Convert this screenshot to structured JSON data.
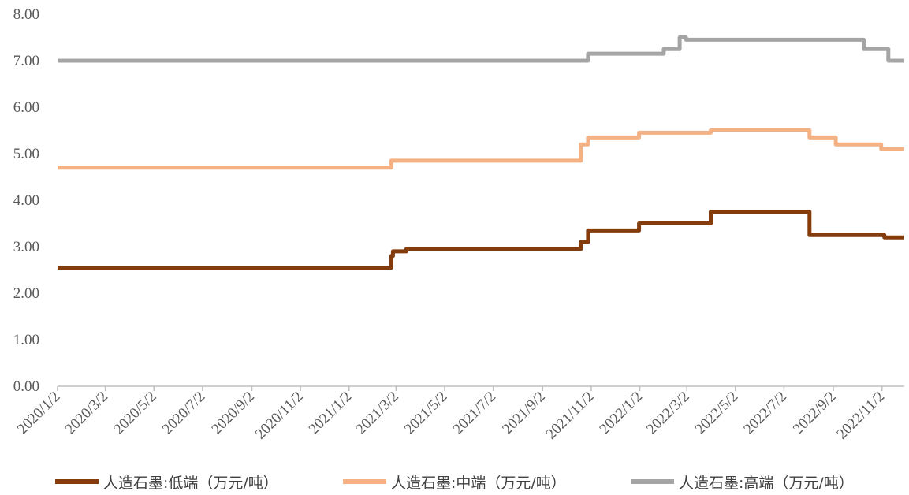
{
  "chart_data": {
    "type": "line",
    "title": "",
    "xlabel": "",
    "ylabel": "",
    "ylim": [
      0,
      8
    ],
    "yticks": [
      "0.00",
      "1.00",
      "2.00",
      "3.00",
      "4.00",
      "5.00",
      "6.00",
      "7.00",
      "8.00"
    ],
    "xticks": [
      "2020/1/2",
      "2020/3/2",
      "2020/5/2",
      "2020/7/2",
      "2020/9/2",
      "2020/11/2",
      "2021/1/2",
      "2021/3/2",
      "2021/5/2",
      "2021/7/2",
      "2021/9/2",
      "2021/11/2",
      "2022/1/2",
      "2022/3/2",
      "2022/5/2",
      "2022/7/2",
      "2022/9/2",
      "2022/11/2"
    ],
    "xlim": [
      "2020-01-02",
      "2022-11-30"
    ],
    "grid": false,
    "legend_position": "bottom",
    "step": true,
    "series": [
      {
        "name": "人造石墨:低端（万元/吨）",
        "color": "#843c0c",
        "points": [
          [
            "2020-01-02",
            2.55
          ],
          [
            "2021-02-24",
            2.8
          ],
          [
            "2021-02-26",
            2.9
          ],
          [
            "2021-03-15",
            2.95
          ],
          [
            "2021-10-20",
            3.1
          ],
          [
            "2021-10-29",
            3.35
          ],
          [
            "2022-01-01",
            3.5
          ],
          [
            "2022-04-01",
            3.75
          ],
          [
            "2022-08-03",
            3.25
          ],
          [
            "2022-11-05",
            3.2
          ],
          [
            "2022-11-30",
            3.2
          ]
        ]
      },
      {
        "name": "人造石墨:中端（万元/吨）",
        "color": "#f4b183",
        "points": [
          [
            "2020-01-02",
            4.7
          ],
          [
            "2021-02-24",
            4.85
          ],
          [
            "2021-10-20",
            5.2
          ],
          [
            "2021-10-29",
            5.35
          ],
          [
            "2022-01-01",
            5.45
          ],
          [
            "2022-04-01",
            5.5
          ],
          [
            "2022-08-03",
            5.35
          ],
          [
            "2022-09-05",
            5.2
          ],
          [
            "2022-11-01",
            5.1
          ],
          [
            "2022-11-30",
            5.1
          ]
        ]
      },
      {
        "name": "人造石墨:高端（万元/吨）",
        "color": "#a5a5a5",
        "points": [
          [
            "2020-01-02",
            7.0
          ],
          [
            "2021-10-29",
            7.15
          ],
          [
            "2022-02-01",
            7.25
          ],
          [
            "2022-02-21",
            7.5
          ],
          [
            "2022-03-01",
            7.45
          ],
          [
            "2022-10-10",
            7.25
          ],
          [
            "2022-11-10",
            7.0
          ],
          [
            "2022-11-30",
            7.0
          ]
        ]
      }
    ]
  }
}
